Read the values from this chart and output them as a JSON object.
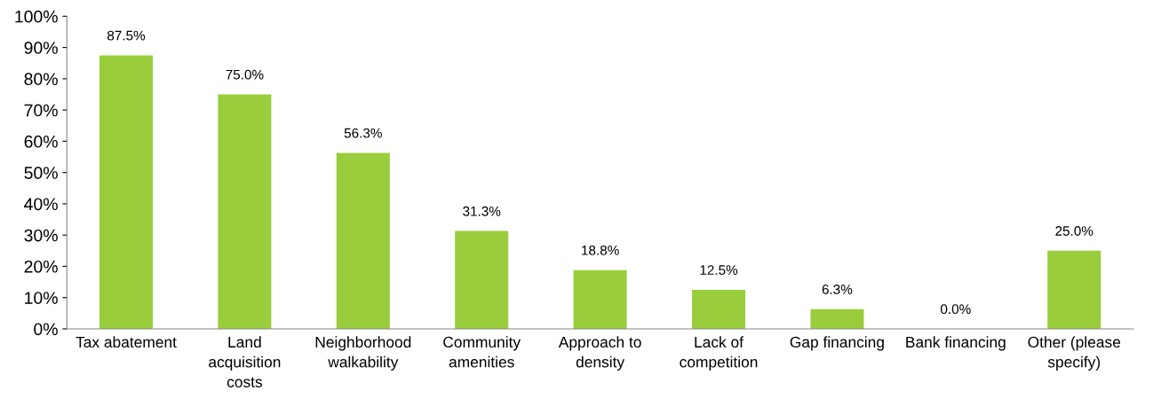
{
  "chart_data": {
    "type": "bar",
    "categories": [
      "Tax abatement",
      "Land\nacquisition\ncosts",
      "Neighborhood\nwalkability",
      "Community\namenities",
      "Approach to\ndensity",
      "Lack of\ncompetition",
      "Gap financing",
      "Bank financing",
      "Other (please\nspecify)"
    ],
    "values": [
      87.5,
      75.0,
      56.3,
      31.3,
      18.8,
      12.5,
      6.3,
      0.0,
      25.0
    ],
    "value_labels": [
      "87.5%",
      "75.0%",
      "56.3%",
      "31.3%",
      "18.8%",
      "12.5%",
      "6.3%",
      "0.0%",
      "25.0%"
    ],
    "color": "#9acd3c",
    "ylim": [
      0,
      100
    ],
    "yticks": [
      {
        "value": 0,
        "label": "0%"
      },
      {
        "value": 10,
        "label": "10%"
      },
      {
        "value": 20,
        "label": "20%"
      },
      {
        "value": 30,
        "label": "30%"
      },
      {
        "value": 40,
        "label": "40%"
      },
      {
        "value": 50,
        "label": "50%"
      },
      {
        "value": 60,
        "label": "60%"
      },
      {
        "value": 70,
        "label": "70%"
      },
      {
        "value": 80,
        "label": "80%"
      },
      {
        "value": 90,
        "label": "90%"
      },
      {
        "value": 100,
        "label": "100%"
      }
    ],
    "grid": false
  }
}
